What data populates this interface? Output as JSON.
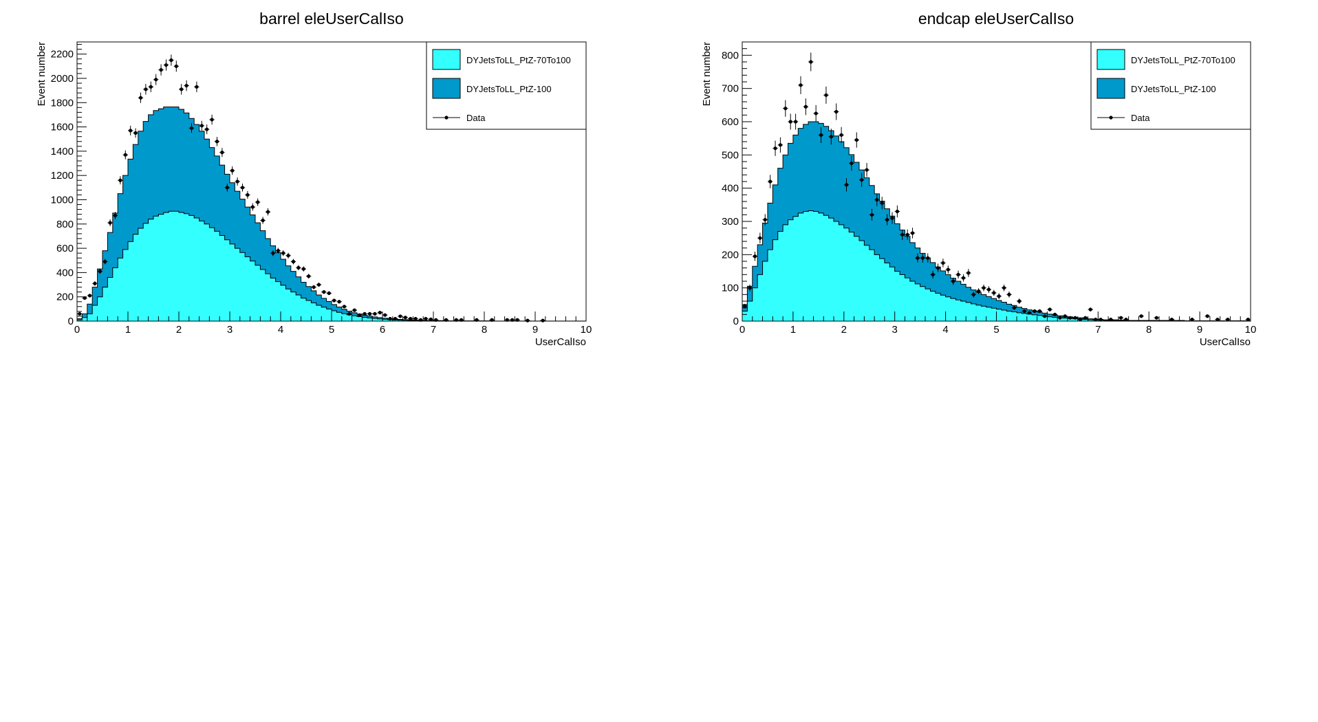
{
  "canvas_background": "#ffffff",
  "colors": {
    "low_pt": "#33ffff",
    "high_pt": "#0099cc",
    "data": "#000000",
    "outline": "#000000"
  },
  "chart_data": [
    {
      "type": "bar",
      "stacked": true,
      "title": "barrel eleUserCalIso",
      "xlabel": "UserCalIso",
      "ylabel": "Event number",
      "xlim": [
        0,
        10
      ],
      "ylim": [
        0,
        2300
      ],
      "yticks": [
        0,
        200,
        400,
        600,
        800,
        1000,
        1200,
        1400,
        1600,
        1800,
        2000,
        2200
      ],
      "xticks": [
        0,
        1,
        2,
        3,
        4,
        5,
        6,
        7,
        8,
        9,
        10
      ],
      "legend": {
        "position": "top-right",
        "entries": [
          "DYJetsToLL_PtZ-70To100",
          "DYJetsToLL_PtZ-100",
          "Data"
        ]
      },
      "bin_width": 0.1,
      "series": [
        {
          "name": "DYJetsToLL_PtZ-70To100",
          "color": "#33ffff",
          "values": [
            10,
            30,
            60,
            130,
            200,
            280,
            360,
            440,
            520,
            590,
            655,
            715,
            765,
            805,
            840,
            865,
            880,
            895,
            905,
            905,
            895,
            885,
            870,
            850,
            825,
            800,
            770,
            740,
            705,
            670,
            635,
            600,
            565,
            530,
            495,
            460,
            425,
            390,
            355,
            325,
            295,
            265,
            240,
            215,
            190,
            170,
            150,
            130,
            115,
            100,
            85,
            72,
            61,
            52,
            44,
            37,
            31,
            26,
            22,
            18,
            15,
            12,
            10,
            8,
            7,
            6,
            5,
            4,
            3,
            3,
            2,
            2,
            2,
            1,
            1,
            1,
            1,
            1,
            1,
            1,
            1,
            1,
            0,
            0,
            0,
            0,
            0,
            0,
            0,
            0,
            0,
            0,
            0,
            0,
            0,
            0,
            0,
            0,
            0,
            0
          ]
        },
        {
          "name": "DYJetsToLL_PtZ-100",
          "color": "#0099cc",
          "values": [
            10,
            30,
            80,
            150,
            230,
            300,
            370,
            450,
            530,
            610,
            680,
            740,
            800,
            840,
            860,
            870,
            870,
            870,
            860,
            860,
            850,
            830,
            800,
            770,
            740,
            700,
            660,
            620,
            580,
            540,
            505,
            470,
            440,
            410,
            380,
            350,
            320,
            290,
            265,
            240,
            215,
            190,
            170,
            150,
            130,
            115,
            100,
            85,
            73,
            62,
            52,
            44,
            37,
            30,
            25,
            21,
            18,
            15,
            13,
            11,
            9,
            8,
            7,
            6,
            5,
            4,
            3,
            3,
            3,
            2,
            2,
            2,
            1,
            1,
            1,
            1,
            1,
            1,
            1,
            1,
            1,
            1,
            1,
            1,
            1,
            1,
            1,
            1,
            1,
            1,
            1,
            1,
            1,
            1,
            1,
            1,
            1,
            1,
            1,
            1
          ]
        }
      ],
      "data_points": {
        "name": "Data",
        "x": [
          0.05,
          0.15,
          0.25,
          0.35,
          0.45,
          0.55,
          0.65,
          0.75,
          0.85,
          0.95,
          1.05,
          1.15,
          1.25,
          1.35,
          1.45,
          1.55,
          1.65,
          1.75,
          1.85,
          1.95,
          2.05,
          2.15,
          2.25,
          2.35,
          2.45,
          2.55,
          2.65,
          2.75,
          2.85,
          2.95,
          3.05,
          3.15,
          3.25,
          3.35,
          3.45,
          3.55,
          3.65,
          3.75,
          3.85,
          3.95,
          4.05,
          4.15,
          4.25,
          4.35,
          4.45,
          4.55,
          4.65,
          4.75,
          4.85,
          4.95,
          5.05,
          5.15,
          5.25,
          5.35,
          5.45,
          5.55,
          5.65,
          5.75,
          5.85,
          5.95,
          6.05,
          6.15,
          6.25,
          6.35,
          6.45,
          6.55,
          6.65,
          6.75,
          6.85,
          6.95,
          7.05,
          7.25,
          7.45,
          7.55,
          7.85,
          8.15,
          8.45,
          8.55,
          8.65,
          8.85,
          9.15
        ],
        "y": [
          60,
          190,
          210,
          310,
          410,
          490,
          810,
          870,
          1160,
          1370,
          1570,
          1550,
          1840,
          1910,
          1930,
          1990,
          2070,
          2110,
          2150,
          2100,
          1910,
          1940,
          1590,
          1930,
          1610,
          1580,
          1660,
          1480,
          1390,
          1100,
          1240,
          1150,
          1100,
          1040,
          940,
          980,
          830,
          900,
          560,
          580,
          560,
          540,
          490,
          440,
          430,
          370,
          280,
          300,
          240,
          230,
          170,
          160,
          120,
          60,
          90,
          50,
          60,
          60,
          60,
          70,
          50,
          20,
          20,
          40,
          30,
          20,
          20,
          10,
          20,
          15,
          10,
          10,
          10,
          10,
          10,
          10,
          10,
          10,
          10,
          5,
          5
        ],
        "err": [
          8,
          14,
          15,
          18,
          20,
          22,
          28,
          30,
          34,
          37,
          40,
          39,
          43,
          44,
          44,
          45,
          46,
          46,
          46,
          46,
          44,
          44,
          40,
          44,
          40,
          40,
          41,
          38,
          37,
          33,
          35,
          34,
          33,
          32,
          31,
          31,
          29,
          30,
          24,
          24,
          24,
          23,
          22,
          21,
          21,
          19,
          17,
          17,
          15,
          15,
          13,
          13,
          11,
          8,
          9,
          7,
          8,
          8,
          8,
          8,
          7,
          4,
          4,
          6,
          5,
          4,
          4,
          3,
          4,
          4,
          3,
          3,
          3,
          3,
          3,
          3,
          3,
          3,
          3,
          2,
          2
        ]
      }
    },
    {
      "type": "bar",
      "stacked": true,
      "title": "endcap eleUserCalIso",
      "xlabel": "UserCalIso",
      "ylabel": "Event number",
      "xlim": [
        0,
        10
      ],
      "ylim": [
        0,
        840
      ],
      "yticks": [
        0,
        100,
        200,
        300,
        400,
        500,
        600,
        700,
        800
      ],
      "xticks": [
        0,
        1,
        2,
        3,
        4,
        5,
        6,
        7,
        8,
        9,
        10
      ],
      "legend": {
        "position": "top-right",
        "entries": [
          "DYJetsToLL_PtZ-70To100",
          "DYJetsToLL_PtZ-100",
          "Data"
        ]
      },
      "bin_width": 0.1,
      "series": [
        {
          "name": "DYJetsToLL_PtZ-70To100",
          "color": "#33ffff",
          "values": [
            30,
            60,
            100,
            140,
            180,
            215,
            245,
            270,
            290,
            305,
            315,
            325,
            330,
            332,
            330,
            325,
            318,
            310,
            300,
            290,
            280,
            268,
            255,
            242,
            228,
            215,
            200,
            188,
            175,
            163,
            150,
            140,
            130,
            120,
            112,
            104,
            97,
            90,
            84,
            78,
            73,
            68,
            64,
            60,
            56,
            52,
            48,
            45,
            42,
            39,
            36,
            33,
            30,
            28,
            25,
            23,
            21,
            19,
            17,
            15,
            13,
            11,
            10,
            9,
            8,
            7,
            6,
            5,
            4,
            3,
            3,
            2,
            2,
            2,
            1,
            1,
            1,
            1,
            1,
            1,
            1,
            1,
            1,
            1,
            1,
            1,
            1,
            0,
            0,
            0,
            0,
            0,
            0,
            0,
            0,
            0,
            0,
            0,
            0,
            0
          ]
        },
        {
          "name": "DYJetsToLL_PtZ-100",
          "color": "#0099cc",
          "values": [
            20,
            45,
            65,
            90,
            115,
            140,
            165,
            190,
            210,
            230,
            245,
            255,
            262,
            268,
            270,
            270,
            268,
            263,
            257,
            250,
            242,
            233,
            223,
            213,
            203,
            193,
            183,
            173,
            163,
            153,
            143,
            134,
            125,
            116,
            108,
            100,
            93,
            86,
            79,
            73,
            67,
            61,
            56,
            51,
            46,
            42,
            38,
            35,
            32,
            29,
            26,
            24,
            21,
            19,
            17,
            15,
            13,
            12,
            10,
            9,
            8,
            7,
            6,
            5,
            5,
            4,
            4,
            3,
            3,
            3,
            2,
            2,
            2,
            2,
            2,
            1,
            1,
            1,
            1,
            1,
            1,
            1,
            1,
            1,
            1,
            1,
            1,
            1,
            1,
            1,
            1,
            1,
            1,
            1,
            1,
            1,
            1,
            1,
            1,
            1
          ]
        }
      ],
      "data_points": {
        "name": "Data",
        "x": [
          0.05,
          0.15,
          0.25,
          0.35,
          0.45,
          0.55,
          0.65,
          0.75,
          0.85,
          0.95,
          1.05,
          1.15,
          1.25,
          1.35,
          1.45,
          1.55,
          1.65,
          1.75,
          1.85,
          1.95,
          2.05,
          2.15,
          2.25,
          2.35,
          2.45,
          2.55,
          2.65,
          2.75,
          2.85,
          2.95,
          3.05,
          3.15,
          3.25,
          3.35,
          3.45,
          3.55,
          3.65,
          3.75,
          3.85,
          3.95,
          4.05,
          4.15,
          4.25,
          4.35,
          4.45,
          4.55,
          4.65,
          4.75,
          4.85,
          4.95,
          5.05,
          5.15,
          5.25,
          5.35,
          5.45,
          5.55,
          5.65,
          5.75,
          5.85,
          5.95,
          6.05,
          6.15,
          6.25,
          6.35,
          6.45,
          6.55,
          6.65,
          6.75,
          6.85,
          6.95,
          7.05,
          7.25,
          7.45,
          7.55,
          7.85,
          8.15,
          8.45,
          8.85,
          9.15,
          9.35,
          9.55,
          9.95
        ],
        "y": [
          45,
          100,
          195,
          250,
          305,
          420,
          520,
          530,
          640,
          600,
          600,
          710,
          645,
          780,
          625,
          560,
          680,
          555,
          630,
          560,
          410,
          475,
          545,
          425,
          455,
          320,
          365,
          355,
          305,
          310,
          330,
          260,
          260,
          265,
          190,
          190,
          190,
          140,
          160,
          175,
          155,
          120,
          140,
          130,
          145,
          80,
          90,
          100,
          95,
          85,
          75,
          100,
          80,
          40,
          60,
          30,
          25,
          30,
          30,
          15,
          35,
          20,
          10,
          15,
          10,
          10,
          5,
          10,
          35,
          5,
          5,
          5,
          10,
          5,
          15,
          10,
          5,
          5,
          15,
          5,
          5,
          5
        ],
        "err": [
          7,
          10,
          14,
          16,
          17,
          20,
          23,
          23,
          25,
          24,
          24,
          27,
          25,
          28,
          25,
          24,
          26,
          24,
          25,
          24,
          20,
          22,
          23,
          21,
          21,
          18,
          19,
          19,
          17,
          18,
          18,
          16,
          16,
          16,
          14,
          14,
          14,
          12,
          13,
          13,
          12,
          11,
          12,
          11,
          12,
          9,
          9,
          10,
          10,
          9,
          9,
          10,
          9,
          6,
          8,
          5,
          5,
          5,
          5,
          4,
          6,
          4,
          3,
          4,
          3,
          3,
          2,
          3,
          6,
          2,
          2,
          2,
          3,
          2,
          4,
          3,
          2,
          2,
          4,
          2,
          2,
          2
        ]
      }
    }
  ]
}
